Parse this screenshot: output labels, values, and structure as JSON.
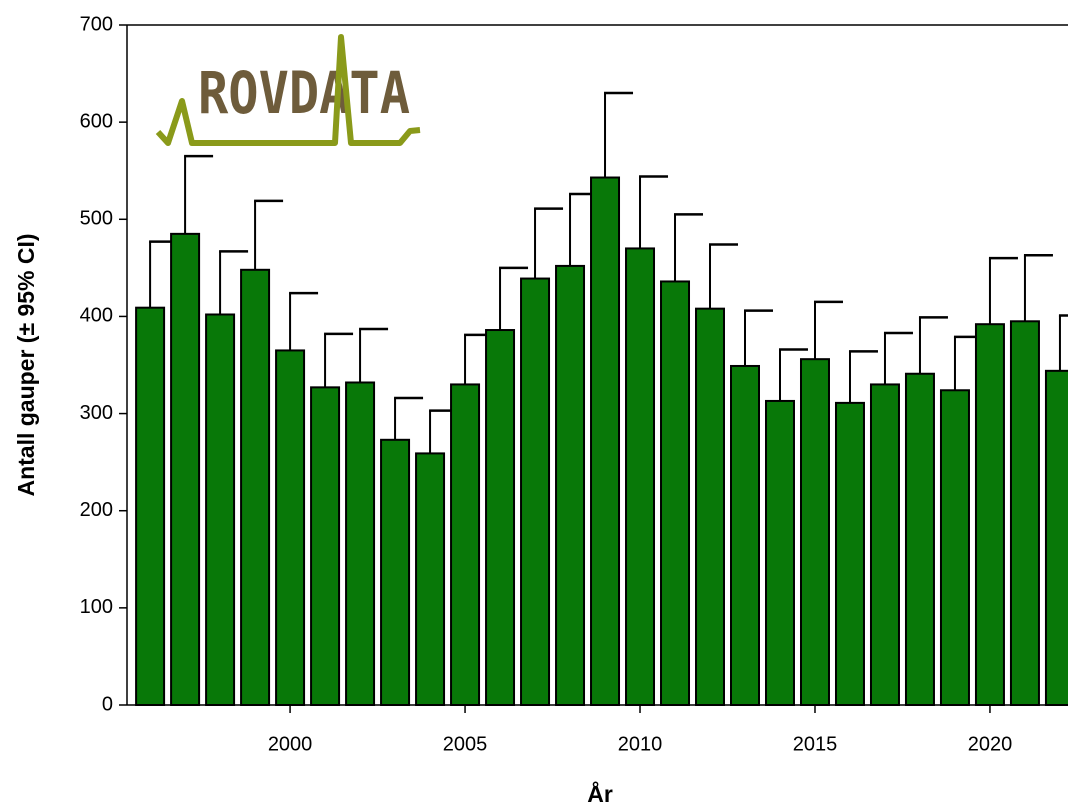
{
  "chart_data": {
    "type": "bar",
    "logo": "ROVDATA",
    "ylabel": "Antall gauper (± 95% CI)",
    "xlabel": "År",
    "x": [
      1996,
      1997,
      1998,
      1999,
      2000,
      2001,
      2002,
      2003,
      2004,
      2005,
      2006,
      2007,
      2008,
      2009,
      2010,
      2011,
      2012,
      2013,
      2014,
      2015,
      2016,
      2017,
      2018,
      2019,
      2020,
      2021,
      2022
    ],
    "values": [
      409,
      485,
      402,
      448,
      365,
      327,
      332,
      273,
      259,
      330,
      386,
      439,
      452,
      543,
      470,
      436,
      408,
      349,
      313,
      356,
      311,
      330,
      341,
      324,
      392,
      395,
      344
    ],
    "errors": [
      68,
      80,
      65,
      71,
      59,
      55,
      55,
      43,
      44,
      51,
      64,
      72,
      74,
      87,
      74,
      69,
      66,
      57,
      53,
      59,
      53,
      53,
      58,
      55,
      68,
      68,
      57
    ],
    "color": "#087808",
    "xlim": [
      1995.34,
      2022.23
    ],
    "xticks": [
      2000,
      2005,
      2010,
      2015,
      2020
    ],
    "ylim": [
      0,
      700
    ],
    "yticks": [
      0,
      100,
      200,
      300,
      400,
      500,
      600,
      700
    ]
  }
}
